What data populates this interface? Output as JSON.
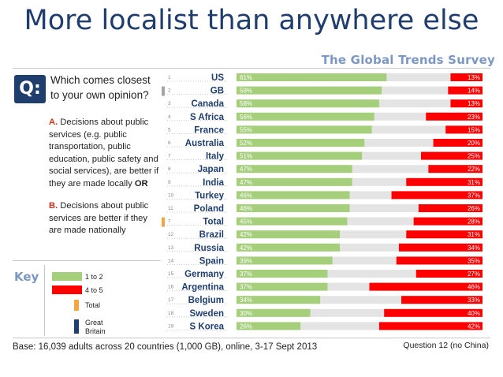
{
  "title": "More localist than anywhere else",
  "subtitle": "The Global Trends Survey",
  "question_badge": "Q:",
  "question": "Which comes closest to your own opinion?",
  "option_a": {
    "letter": "A.",
    "text": "Decisions about public services (e.g. public transportation, public education, public safety and social services), are better if they are made locally",
    "joiner": "OR"
  },
  "option_b": {
    "letter": "B.",
    "text": "Decisions about public services are better if they are made nationally"
  },
  "key": {
    "label": "Key",
    "items": [
      {
        "label": "1 to 2",
        "color": "#a6cf7c"
      },
      {
        "label": "4 to 5",
        "color": "#ff0000"
      },
      {
        "label": "Total",
        "color": "#f4a640"
      },
      {
        "label": "Great Britain",
        "color": "#1f3e6e"
      }
    ]
  },
  "footer": "Base: 16,039 adults across 20 countries (1,000 GB), online, 3-17 Sept 2013",
  "footnote": "Question 12 (no China)",
  "colors": {
    "green": "#a6cf7c",
    "red": "#ff0000",
    "grey": "#e4e4e4",
    "total_marker": "#f4a640",
    "gb_marker": "#a5a5a5",
    "country_text": "#1f3e6e"
  },
  "chart_data": {
    "type": "bar",
    "categories": [
      "US",
      "GB",
      "Canada",
      "S Africa",
      "France",
      "Australia",
      "Italy",
      "Japan",
      "India",
      "Turkey",
      "Poland",
      "Total",
      "Brazil",
      "Russia",
      "Spain",
      "Germany",
      "Argentina",
      "Belgium",
      "Sweden",
      "S Korea"
    ],
    "ranks": [
      "1",
      "2",
      "3",
      "4",
      "5",
      "6",
      "7",
      "8",
      "9",
      "10",
      "11",
      "7",
      "12",
      "13",
      "14",
      "15",
      "16",
      "17",
      "18",
      "19"
    ],
    "series": [
      {
        "name": "1 to 2",
        "values": [
          61,
          59,
          58,
          56,
          55,
          52,
          51,
          47,
          47,
          46,
          46,
          45,
          42,
          42,
          39,
          37,
          37,
          34,
          30,
          26
        ],
        "labels": [
          "61%",
          "59%",
          "58%",
          "56%",
          "55%",
          "52%",
          "51%",
          "47%",
          "47%",
          "46%",
          "46%",
          "45%",
          "42%",
          "42%",
          "39%",
          "37%",
          "37%",
          "34%",
          "30%",
          "26%"
        ]
      },
      {
        "name": "4 to 5",
        "values": [
          13,
          14,
          13,
          23,
          15,
          20,
          25,
          22,
          31,
          37,
          26,
          28,
          31,
          34,
          35,
          27,
          46,
          33,
          40,
          42
        ],
        "labels": [
          "13%",
          "14%",
          "13%",
          "23%",
          "15%",
          "20%",
          "25%",
          "22%",
          "31%",
          "37%",
          "26%",
          "28%",
          "31%",
          "34%",
          "35%",
          "27%",
          "46%",
          "33%",
          "40%",
          "42%"
        ]
      }
    ],
    "xlim": [
      0,
      100
    ]
  }
}
